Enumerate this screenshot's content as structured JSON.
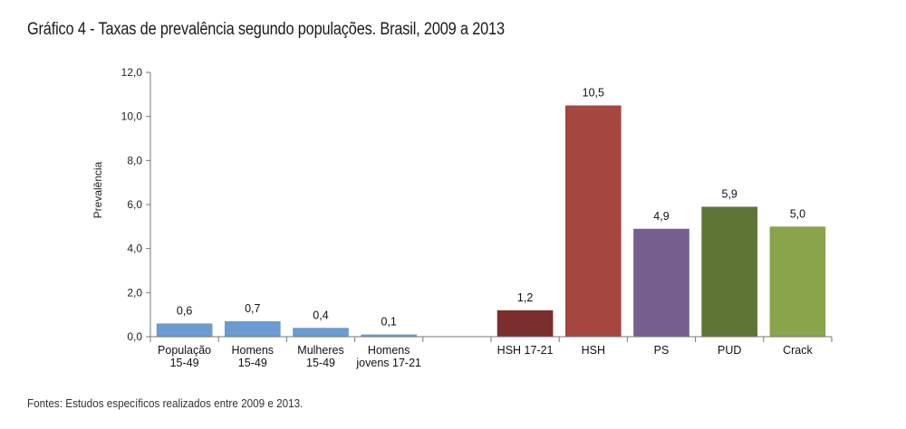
{
  "header": {
    "title": "Gráfico 4 - Taxas de prevalência segundo populações. Brasil, 2009 a 2013"
  },
  "footer": {
    "source": "Fontes: Estudos específicos realizados entre 2009 e 2013."
  },
  "chart_data": {
    "type": "bar",
    "title": "Gráfico 4 - Taxas de prevalência segundo populações. Brasil, 2009 a 2013",
    "ylabel": "Prevalência",
    "xlabel": "",
    "ylim": [
      0,
      12
    ],
    "yticks": [
      "0,0",
      "2,0",
      "4,0",
      "6,0",
      "8,0",
      "10,0",
      "12,0"
    ],
    "grid": false,
    "categories": [
      [
        "População",
        "15-49"
      ],
      [
        "Homens",
        "15-49"
      ],
      [
        "Mulheres",
        "15-49"
      ],
      [
        "Homens",
        "jovens 17-21"
      ],
      [
        ""
      ],
      [
        "HSH 17-21"
      ],
      [
        "HSH"
      ],
      [
        "PS"
      ],
      [
        "PUD"
      ],
      [
        "Crack"
      ]
    ],
    "values": [
      0.6,
      0.7,
      0.4,
      0.1,
      null,
      1.2,
      10.5,
      4.9,
      5.9,
      5.0
    ],
    "value_labels": [
      "0,6",
      "0,7",
      "0,4",
      "0,1",
      "",
      "1,2",
      "10,5",
      "4,9",
      "5,9",
      "5,0"
    ],
    "colors": [
      "#6a9bd1",
      "#6a9bd1",
      "#6a9bd1",
      "#6a9bd1",
      "#ffffff",
      "#7a2f2c",
      "#a5463f",
      "#77608f",
      "#5f7534",
      "#89a44b"
    ]
  }
}
